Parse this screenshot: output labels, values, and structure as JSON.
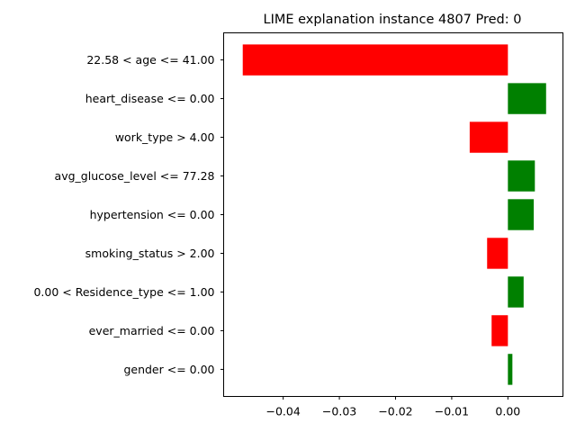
{
  "chart_data": {
    "type": "bar",
    "orientation": "horizontal",
    "title": "LIME explanation instance 4807 Pred: 0",
    "xlabel": "",
    "ylabel": "",
    "categories": [
      "22.58 < age <= 41.00",
      "heart_disease <= 0.00",
      "work_type > 4.00",
      "avg_glucose_level <= 77.28",
      "hypertension <= 0.00",
      "smoking_status > 2.00",
      "0.00 < Residence_type <= 1.00",
      "ever_married <= 0.00",
      "gender <= 0.00"
    ],
    "values": [
      -0.0472,
      0.0068,
      -0.0068,
      0.0048,
      0.0046,
      -0.0037,
      0.0028,
      -0.0029,
      0.0008
    ],
    "xlim": [
      -0.0506,
      0.0098
    ],
    "xticks": [
      -0.04,
      -0.03,
      -0.02,
      -0.01,
      0.0
    ],
    "xtick_labels": [
      "−0.04",
      "−0.03",
      "−0.02",
      "−0.01",
      "0.00"
    ],
    "positive_color": "#008000",
    "negative_color": "#ff0000",
    "grid": false,
    "legend": "none"
  }
}
